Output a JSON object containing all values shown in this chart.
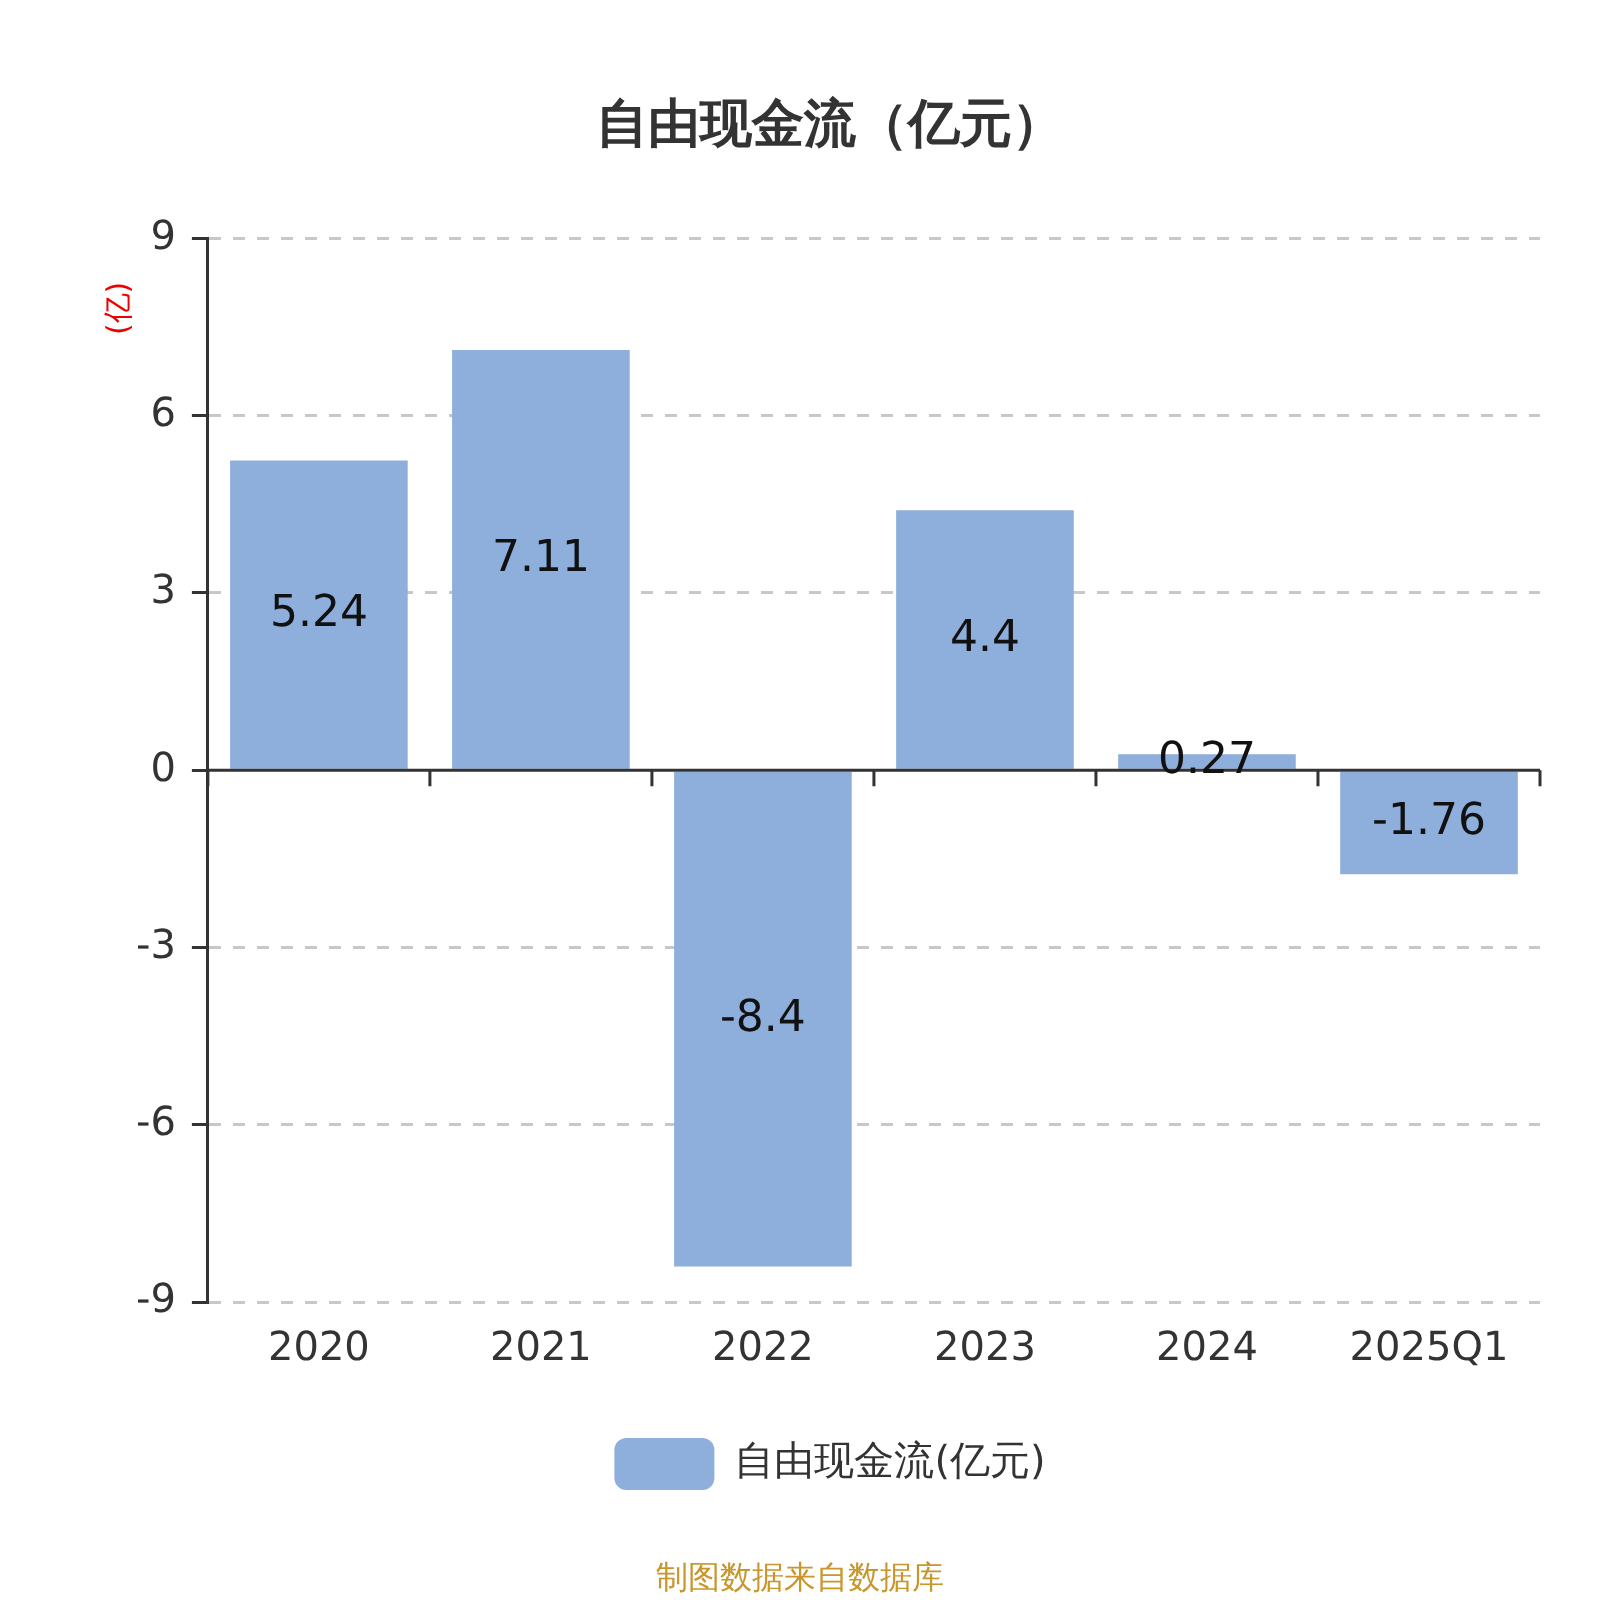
{
  "chart_data": {
    "type": "bar",
    "title": "自由现金流（亿元）",
    "ylabel": "(亿)",
    "categories": [
      "2020",
      "2021",
      "2022",
      "2023",
      "2024",
      "2025Q1"
    ],
    "series": [
      {
        "name": "自由现金流(亿元)",
        "color": "#8eaedb",
        "values": [
          5.24,
          7.11,
          -8.4,
          4.4,
          0.27,
          -1.76
        ]
      }
    ],
    "ylim": [
      -9,
      9
    ],
    "yticks": [
      -9,
      -6,
      -3,
      0,
      3,
      6,
      9
    ],
    "grid": "y",
    "legend": "bottom",
    "data_labels": true,
    "annotations": [
      "制图数据来自数据库"
    ]
  }
}
